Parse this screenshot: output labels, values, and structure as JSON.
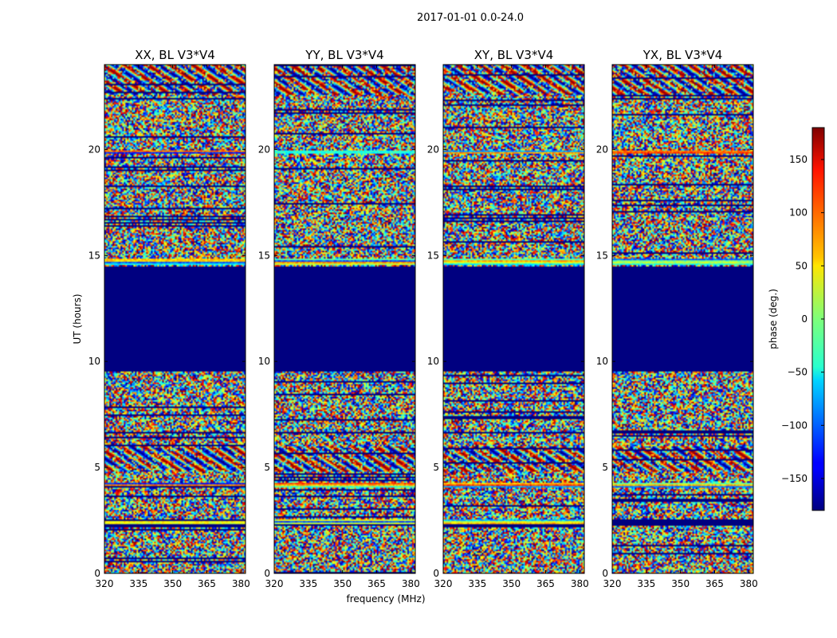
{
  "figure": {
    "suptitle": "2017-01-01 0.0-24.0",
    "xlabel": "frequency (MHz)",
    "ylabel": "UT (hours)"
  },
  "colorbar": {
    "label": "phase (deg.)",
    "colormap": "jet",
    "range": [
      -180,
      180
    ],
    "ticks": [
      -150,
      -100,
      -50,
      0,
      50,
      100,
      150
    ]
  },
  "chart_data": [
    {
      "type": "heatmap",
      "title": "XX, BL V3*V4",
      "xlim": [
        320,
        382
      ],
      "ylim": [
        0,
        24
      ],
      "xticks": [
        320,
        335,
        350,
        365,
        380
      ],
      "yticks": [
        0,
        5,
        10,
        15,
        20
      ],
      "z_units": "phase (deg.)",
      "flagged_time_ranges": [
        [
          9.5,
          14.5
        ]
      ]
    },
    {
      "type": "heatmap",
      "title": "YY, BL V3*V4",
      "xlim": [
        320,
        382
      ],
      "ylim": [
        0,
        24
      ],
      "xticks": [
        320,
        335,
        350,
        365,
        380
      ],
      "yticks": [
        0,
        5,
        10,
        15,
        20
      ],
      "z_units": "phase (deg.)",
      "flagged_time_ranges": [
        [
          9.5,
          14.5
        ]
      ]
    },
    {
      "type": "heatmap",
      "title": "XY, BL V3*V4",
      "xlim": [
        320,
        382
      ],
      "ylim": [
        0,
        24
      ],
      "xticks": [
        320,
        335,
        350,
        365,
        380
      ],
      "yticks": [
        0,
        5,
        10,
        15,
        20
      ],
      "z_units": "phase (deg.)",
      "flagged_time_ranges": [
        [
          9.5,
          14.5
        ]
      ]
    },
    {
      "type": "heatmap",
      "title": "YX, BL V3*V4",
      "xlim": [
        320,
        382
      ],
      "ylim": [
        0,
        24
      ],
      "xticks": [
        320,
        335,
        350,
        365,
        380
      ],
      "yticks": [
        0,
        5,
        10,
        15,
        20
      ],
      "z_units": "phase (deg.)",
      "flagged_time_ranges": [
        [
          9.5,
          14.5
        ]
      ]
    }
  ]
}
